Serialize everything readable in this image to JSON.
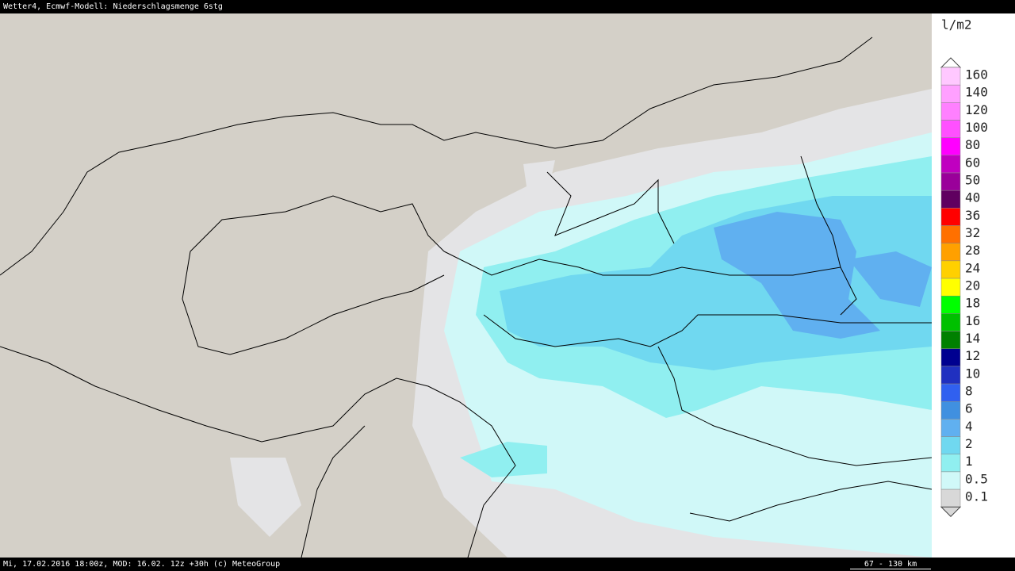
{
  "header": {
    "title": "Wetter4, Ecmwf-Modell: Niederschlagsmenge 6stg"
  },
  "legend": {
    "unit": "l/m2",
    "items": [
      {
        "label": "160",
        "color": "#ffc8ff"
      },
      {
        "label": "140",
        "color": "#ffa0ff"
      },
      {
        "label": "120",
        "color": "#ff80ff"
      },
      {
        "label": "100",
        "color": "#ff50ff"
      },
      {
        "label": "80",
        "color": "#ff00ff"
      },
      {
        "label": "60",
        "color": "#c000c0"
      },
      {
        "label": "50",
        "color": "#9a009a"
      },
      {
        "label": "40",
        "color": "#600060"
      },
      {
        "label": "36",
        "color": "#ff0000"
      },
      {
        "label": "32",
        "color": "#ff7000"
      },
      {
        "label": "28",
        "color": "#ffa000"
      },
      {
        "label": "24",
        "color": "#ffd000"
      },
      {
        "label": "20",
        "color": "#ffff00"
      },
      {
        "label": "18",
        "color": "#00ff00"
      },
      {
        "label": "16",
        "color": "#00c000"
      },
      {
        "label": "14",
        "color": "#008000"
      },
      {
        "label": "12",
        "color": "#000090"
      },
      {
        "label": "10",
        "color": "#2030c0"
      },
      {
        "label": "8",
        "color": "#3060f0"
      },
      {
        "label": "6",
        "color": "#4090e0"
      },
      {
        "label": "4",
        "color": "#60b0f0"
      },
      {
        "label": "2",
        "color": "#70d8f0"
      },
      {
        "label": "1",
        "color": "#90eff0"
      },
      {
        "label": "0.5",
        "color": "#d0f8f8"
      },
      {
        "label": "0.1",
        "color": "#d8d8d8"
      }
    ]
  },
  "footer": {
    "text": "Mi, 17.02.2016 18:00z, MOD: 16.02. 12z +30h (c) MeteoGroup",
    "scale": "67 - 130 km"
  }
}
